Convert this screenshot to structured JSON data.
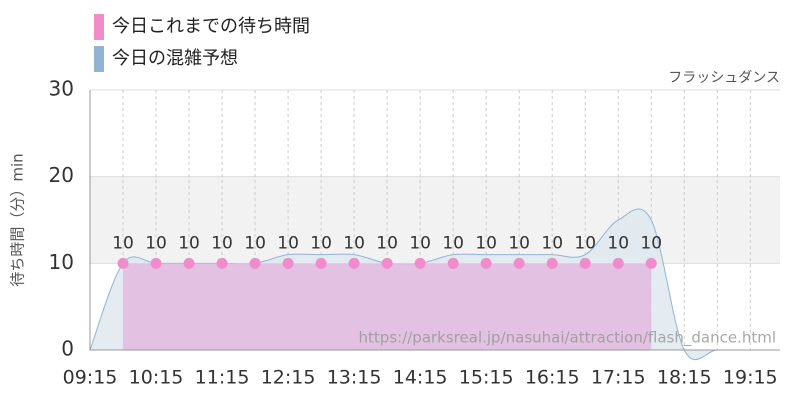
{
  "chart_data": {
    "type": "area",
    "subtitle": "フラッシュダンス",
    "ylabel": "待ち時間（分）min",
    "watermark": "https://parksreal.jp/nasuhai/attraction/flash_dance.html",
    "xlim": [
      555,
      1182
    ],
    "ylim": [
      0,
      30
    ],
    "yticks": [
      0,
      10,
      20,
      30
    ],
    "xticks": [
      {
        "value": 555,
        "label": "09:15"
      },
      {
        "value": 615,
        "label": "10:15"
      },
      {
        "value": 675,
        "label": "11:15"
      },
      {
        "value": 735,
        "label": "12:15"
      },
      {
        "value": 795,
        "label": "13:15"
      },
      {
        "value": 855,
        "label": "14:15"
      },
      {
        "value": 915,
        "label": "15:15"
      },
      {
        "value": 975,
        "label": "16:15"
      },
      {
        "value": 1035,
        "label": "17:15"
      },
      {
        "value": 1095,
        "label": "18:15"
      },
      {
        "value": 1155,
        "label": "19:15"
      }
    ],
    "band": [
      10,
      20
    ],
    "grid": true,
    "series": [
      {
        "name": "今日これまでの待ち時間",
        "color": "#f08ccc",
        "fill": "#e2bde0",
        "x": [
          585,
          615,
          645,
          675,
          705,
          735,
          765,
          795,
          825,
          855,
          885,
          915,
          945,
          975,
          1005,
          1035,
          1065
        ],
        "values": [
          10,
          10,
          10,
          10,
          10,
          10,
          10,
          10,
          10,
          10,
          10,
          10,
          10,
          10,
          10,
          10,
          10
        ]
      },
      {
        "name": "今日の混雑予想",
        "color": "#92b4d4",
        "fill": "#dfe7ef",
        "x": [
          555,
          585,
          615,
          645,
          675,
          705,
          735,
          765,
          795,
          825,
          855,
          885,
          915,
          945,
          975,
          1005,
          1035,
          1065,
          1095,
          1125,
          1155,
          1182
        ],
        "values": [
          0,
          10,
          10,
          10,
          10,
          10,
          11,
          11,
          11,
          10,
          10,
          11,
          11,
          11,
          11,
          11,
          15,
          15,
          0,
          0,
          0,
          0
        ]
      }
    ]
  }
}
